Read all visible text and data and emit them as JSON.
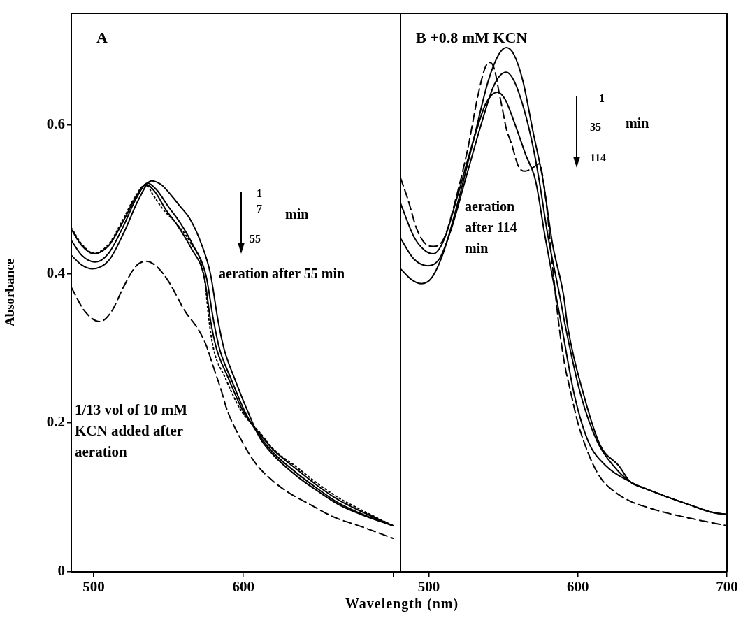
{
  "chart_data": [
    {
      "type": "line",
      "title": "A",
      "ylabel": "Absorbance",
      "xlabel": "Wavelength (nm)",
      "xlim": [
        485,
        705
      ],
      "xticks": [
        500,
        600,
        {
          "value": 700,
          "label": null
        }
      ],
      "ylim": [
        0,
        0.75
      ],
      "yticks": [
        0,
        0.2,
        0.4,
        0.6
      ],
      "legend": false,
      "marker": "none",
      "annotations": [
        "1",
        "7",
        "55",
        "min",
        "aeration after 55 min",
        "1/13 vol of 10 mM KCN added after aeration"
      ],
      "series": [
        {
          "color": "#000000",
          "line_style": "dotted",
          "x": [
            485,
            492,
            500,
            510,
            520,
            528,
            534.7,
            540,
            545.5,
            555,
            564,
            574,
            577,
            580,
            588,
            598,
            611,
            620,
            636,
            650,
            664,
            680,
            700
          ],
          "values": [
            0.462,
            0.44,
            0.428,
            0.44,
            0.475,
            0.505,
            0.52,
            0.505,
            0.489,
            0.468,
            0.444,
            0.394,
            0.338,
            0.3,
            0.26,
            0.218,
            0.187,
            0.165,
            0.14,
            0.118,
            0.099,
            0.082,
            0.062
          ]
        },
        {
          "color": "#000000",
          "line_style": "solid",
          "x": [
            485,
            492,
            500,
            510,
            520,
            528,
            535,
            541,
            548,
            556,
            565,
            574,
            578,
            582,
            590,
            600,
            611,
            620,
            636,
            650,
            664,
            680,
            700
          ],
          "values": [
            0.46,
            0.438,
            0.427,
            0.438,
            0.472,
            0.503,
            0.52,
            0.51,
            0.487,
            0.465,
            0.435,
            0.394,
            0.338,
            0.3,
            0.26,
            0.215,
            0.185,
            0.164,
            0.137,
            0.115,
            0.096,
            0.08,
            0.062
          ]
        },
        {
          "color": "#000000",
          "line_style": "solid",
          "x": [
            485,
            492,
            501,
            510,
            520,
            528,
            536,
            542,
            550,
            558,
            566,
            575,
            580,
            584,
            592,
            601,
            611,
            620,
            636,
            650,
            664,
            680,
            700
          ],
          "values": [
            0.445,
            0.425,
            0.416,
            0.428,
            0.465,
            0.5,
            0.522,
            0.513,
            0.49,
            0.468,
            0.44,
            0.398,
            0.338,
            0.3,
            0.258,
            0.215,
            0.182,
            0.16,
            0.132,
            0.111,
            0.092,
            0.077,
            0.062
          ]
        },
        {
          "color": "#000000",
          "line_style": "solid",
          "x": [
            485,
            492,
            499,
            510,
            520,
            530,
            538.5,
            545,
            552,
            558,
            564,
            572,
            578,
            583,
            587,
            595,
            603,
            611,
            620,
            636,
            650,
            664,
            680,
            700
          ],
          "values": [
            0.425,
            0.412,
            0.407,
            0.418,
            0.455,
            0.5,
            0.525,
            0.52,
            0.505,
            0.49,
            0.475,
            0.44,
            0.4,
            0.338,
            0.3,
            0.255,
            0.215,
            0.18,
            0.157,
            0.128,
            0.108,
            0.09,
            0.076,
            0.062
          ]
        },
        {
          "color": "#000000",
          "line_style": "dashed",
          "x": [
            485,
            494,
            504,
            512,
            520,
            528,
            535,
            542,
            550,
            561,
            570,
            575,
            580,
            585,
            589,
            596,
            608,
            618,
            629,
            645,
            660,
            680,
            700
          ],
          "values": [
            0.382,
            0.35,
            0.336,
            0.35,
            0.383,
            0.41,
            0.417,
            0.41,
            0.39,
            0.35,
            0.325,
            0.305,
            0.275,
            0.245,
            0.218,
            0.187,
            0.146,
            0.125,
            0.108,
            0.09,
            0.074,
            0.06,
            0.045
          ]
        }
      ]
    },
    {
      "type": "line",
      "title": "B +0.8 mM KCN",
      "xlim": [
        481,
        700
      ],
      "xticks": [
        500,
        600,
        700
      ],
      "ylim": [
        0,
        0.75
      ],
      "yticks": [
        0,
        0.2,
        0.4,
        0.6
      ],
      "tick_labels": "x",
      "legend": false,
      "marker": "none",
      "annotations": [
        "1",
        "35",
        "114",
        "min",
        "aeration after 114 min"
      ],
      "series": [
        {
          "color": "#000000",
          "line_style": "dashed",
          "x": [
            481,
            486,
            492,
            498,
            503,
            510,
            518,
            526,
            533,
            538,
            541,
            544,
            547,
            549.5,
            552,
            555.6,
            560,
            564.5,
            570,
            574,
            578.5,
            583,
            587,
            591,
            595,
            600,
            604,
            610,
            616,
            625,
            635,
            646,
            658,
            680,
            700
          ],
          "values": [
            0.529,
            0.5,
            0.46,
            0.44,
            0.437,
            0.447,
            0.5,
            0.567,
            0.64,
            0.678,
            0.684,
            0.675,
            0.645,
            0.62,
            0.595,
            0.574,
            0.545,
            0.538,
            0.543,
            0.548,
            0.5,
            0.41,
            0.336,
            0.28,
            0.243,
            0.2,
            0.175,
            0.145,
            0.124,
            0.107,
            0.095,
            0.087,
            0.08,
            0.07,
            0.062
          ]
        },
        {
          "color": "#000000",
          "line_style": "solid",
          "x": [
            481,
            488,
            495,
            502,
            510,
            520,
            530,
            540,
            547,
            552,
            557,
            563,
            570,
            576.6,
            583,
            590.6,
            593,
            604,
            615,
            627.6,
            635,
            645,
            658,
            675,
            690,
            700
          ],
          "values": [
            0.407,
            0.393,
            0.387,
            0.395,
            0.43,
            0.5,
            0.58,
            0.66,
            0.695,
            0.704,
            0.695,
            0.66,
            0.59,
            0.526,
            0.44,
            0.369,
            0.331,
            0.237,
            0.17,
            0.142,
            0.121,
            0.112,
            0.102,
            0.09,
            0.08,
            0.077
          ]
        },
        {
          "color": "#000000",
          "line_style": "solid",
          "x": [
            481,
            490,
            499.5,
            507,
            515,
            525,
            535,
            543,
            548,
            552,
            557,
            564,
            570,
            574,
            580,
            588,
            591.5,
            602,
            613,
            624,
            635,
            645,
            658,
            675,
            690,
            700
          ],
          "values": [
            0.448,
            0.42,
            0.411,
            0.42,
            0.46,
            0.53,
            0.6,
            0.65,
            0.667,
            0.671,
            0.66,
            0.62,
            0.57,
            0.526,
            0.45,
            0.369,
            0.331,
            0.237,
            0.175,
            0.142,
            0.121,
            0.112,
            0.102,
            0.09,
            0.08,
            0.077
          ]
        },
        {
          "color": "#000000",
          "line_style": "solid",
          "x": [
            481,
            490,
            497,
            503,
            510,
            520,
            530,
            538,
            542,
            546,
            551,
            558,
            565,
            571.5,
            578,
            585.5,
            589,
            597.7,
            607,
            619,
            635,
            645,
            658,
            675,
            690,
            700
          ],
          "values": [
            0.495,
            0.45,
            0.432,
            0.427,
            0.445,
            0.51,
            0.58,
            0.628,
            0.64,
            0.644,
            0.635,
            0.6,
            0.56,
            0.526,
            0.45,
            0.369,
            0.331,
            0.237,
            0.175,
            0.142,
            0.121,
            0.112,
            0.102,
            0.09,
            0.08,
            0.077
          ]
        }
      ]
    }
  ]
}
